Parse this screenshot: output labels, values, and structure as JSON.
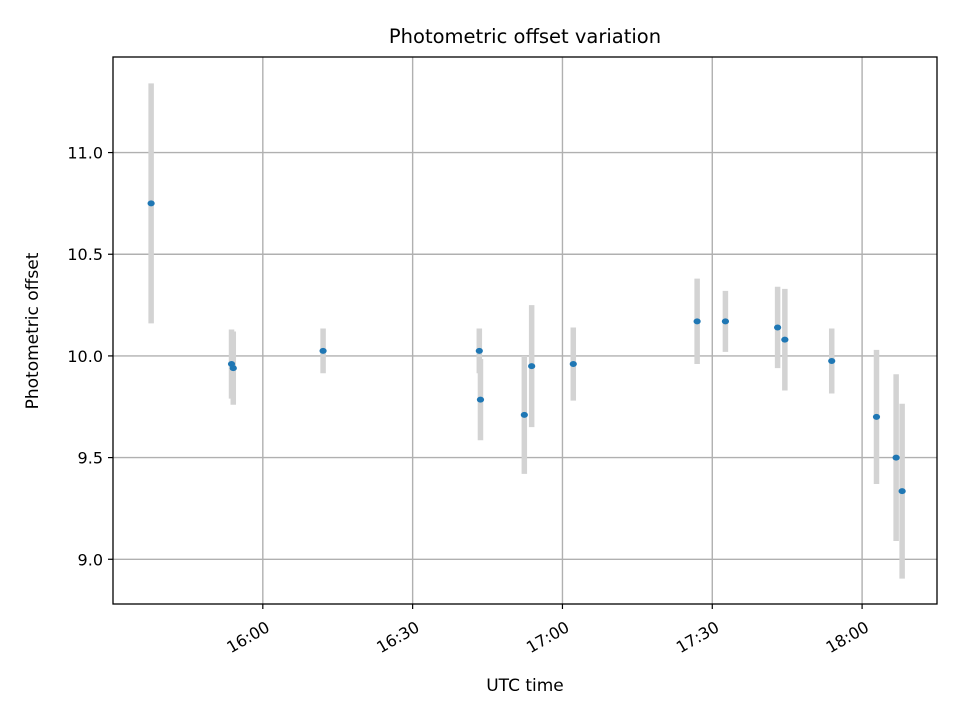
{
  "chart_data": {
    "type": "scatter",
    "title": "Photometric offset variation",
    "xlabel": "UTC time",
    "ylabel": "Photometric offset",
    "xlim": [
      "15:30",
      "18:15"
    ],
    "ylim": [
      8.78,
      11.47
    ],
    "x_ticks": [
      "16:00",
      "16:30",
      "17:00",
      "17:30",
      "18:00"
    ],
    "y_ticks": [
      9.0,
      9.5,
      10.0,
      10.5,
      11.0
    ],
    "y_tick_labels": [
      "9.0",
      "9.5",
      "10.0",
      "10.5",
      "11.0"
    ],
    "grid": true,
    "point_color": "#1f77b4",
    "errorbar_color": "#d3d3d3",
    "points": [
      {
        "x": "15:37:38",
        "y": 10.75,
        "yerr": 0.59
      },
      {
        "x": "15:53:44",
        "y": 9.96,
        "yerr": 0.17
      },
      {
        "x": "15:54:05",
        "y": 9.94,
        "yerr": 0.18
      },
      {
        "x": "16:12:04",
        "y": 10.025,
        "yerr": 0.11
      },
      {
        "x": "16:43:21",
        "y": 10.025,
        "yerr": 0.11
      },
      {
        "x": "16:43:35",
        "y": 9.785,
        "yerr": 0.2
      },
      {
        "x": "16:52:22",
        "y": 9.71,
        "yerr": 0.29
      },
      {
        "x": "16:53:50",
        "y": 9.95,
        "yerr": 0.3
      },
      {
        "x": "17:02:10",
        "y": 9.96,
        "yerr": 0.18
      },
      {
        "x": "17:26:58",
        "y": 10.17,
        "yerr": 0.21
      },
      {
        "x": "17:32:38",
        "y": 10.17,
        "yerr": 0.15
      },
      {
        "x": "17:43:05",
        "y": 10.14,
        "yerr": 0.2
      },
      {
        "x": "17:44:32",
        "y": 10.08,
        "yerr": 0.25
      },
      {
        "x": "17:53:55",
        "y": 9.975,
        "yerr": 0.16
      },
      {
        "x": "18:02:53",
        "y": 9.7,
        "yerr": 0.33
      },
      {
        "x": "18:06:49",
        "y": 9.5,
        "yerr": 0.41
      },
      {
        "x": "18:08:01",
        "y": 9.335,
        "yerr": 0.43
      }
    ]
  }
}
